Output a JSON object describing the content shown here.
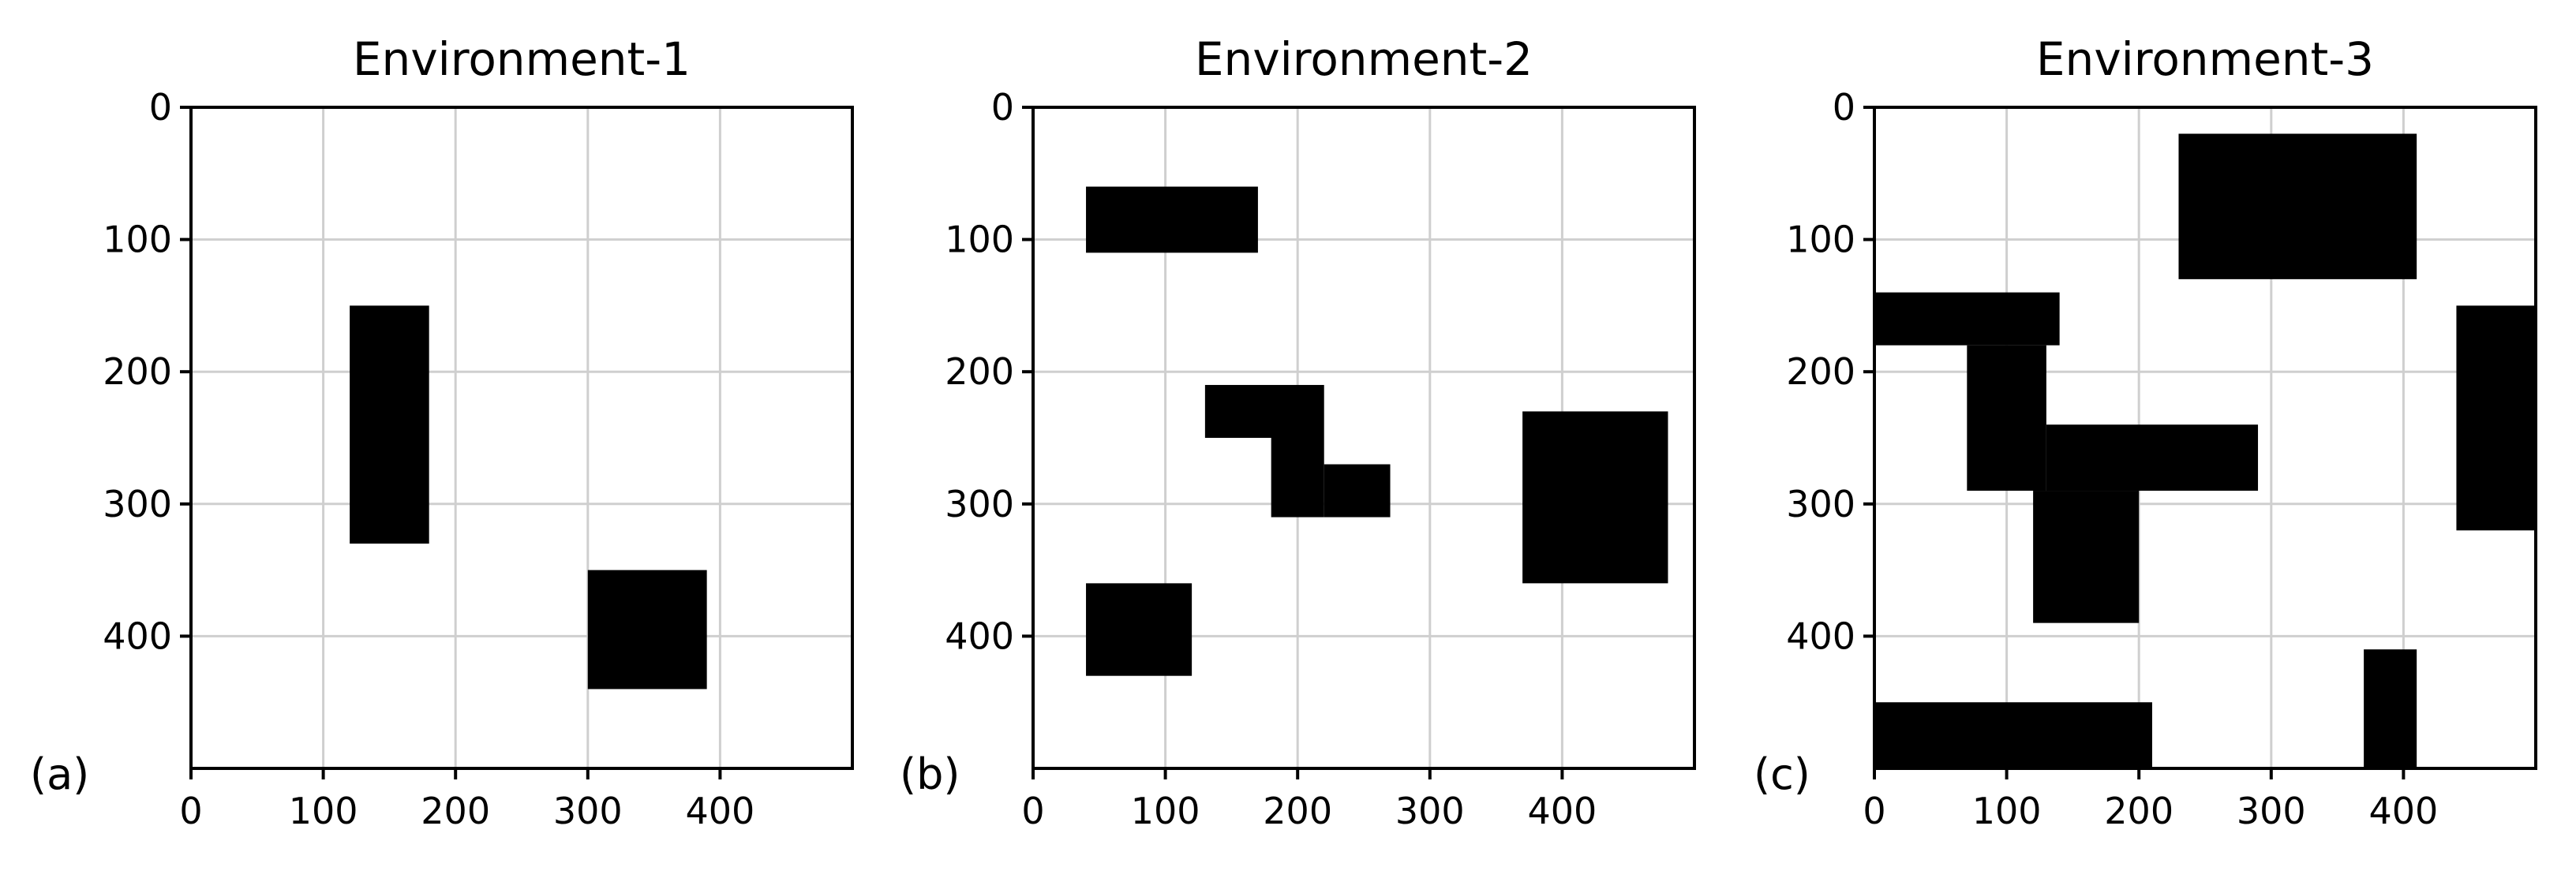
{
  "chart_data": [
    {
      "type": "heatmap",
      "title": "Environment-1",
      "panel_label": "(a)",
      "xlim": [
        0,
        500
      ],
      "ylim": [
        500,
        0
      ],
      "y_inverted": true,
      "grid": true,
      "xticks": [
        0,
        100,
        200,
        300,
        400
      ],
      "yticks": [
        0,
        100,
        200,
        300,
        400
      ],
      "obstacle_color": "#000000",
      "obstacles": [
        {
          "x0": 120,
          "x1": 180,
          "y0": 150,
          "y1": 330
        },
        {
          "x0": 300,
          "x1": 390,
          "y0": 350,
          "y1": 440
        }
      ]
    },
    {
      "type": "heatmap",
      "title": "Environment-2",
      "panel_label": "(b)",
      "xlim": [
        0,
        500
      ],
      "ylim": [
        500,
        0
      ],
      "y_inverted": true,
      "grid": true,
      "xticks": [
        0,
        100,
        200,
        300,
        400
      ],
      "yticks": [
        0,
        100,
        200,
        300,
        400
      ],
      "obstacle_color": "#000000",
      "obstacles": [
        {
          "x0": 40,
          "x1": 170,
          "y0": 60,
          "y1": 110
        },
        {
          "x0": 130,
          "x1": 220,
          "y0": 210,
          "y1": 250
        },
        {
          "x0": 180,
          "x1": 220,
          "y0": 250,
          "y1": 310
        },
        {
          "x0": 220,
          "x1": 270,
          "y0": 270,
          "y1": 310
        },
        {
          "x0": 370,
          "x1": 480,
          "y0": 230,
          "y1": 360
        },
        {
          "x0": 40,
          "x1": 120,
          "y0": 360,
          "y1": 430
        }
      ]
    },
    {
      "type": "heatmap",
      "title": "Environment-3",
      "panel_label": "(c)",
      "xlim": [
        0,
        500
      ],
      "ylim": [
        500,
        0
      ],
      "y_inverted": true,
      "grid": true,
      "xticks": [
        0,
        100,
        200,
        300,
        400
      ],
      "yticks": [
        0,
        100,
        200,
        300,
        400
      ],
      "obstacle_color": "#000000",
      "obstacles": [
        {
          "x0": 230,
          "x1": 410,
          "y0": 20,
          "y1": 130
        },
        {
          "x0": 0,
          "x1": 140,
          "y0": 140,
          "y1": 180
        },
        {
          "x0": 70,
          "x1": 130,
          "y0": 180,
          "y1": 290
        },
        {
          "x0": 130,
          "x1": 290,
          "y0": 240,
          "y1": 290
        },
        {
          "x0": 120,
          "x1": 200,
          "y0": 290,
          "y1": 390
        },
        {
          "x0": 440,
          "x1": 500,
          "y0": 150,
          "y1": 320
        },
        {
          "x0": 370,
          "x1": 410,
          "y0": 410,
          "y1": 500
        },
        {
          "x0": 0,
          "x1": 210,
          "y0": 450,
          "y1": 500
        }
      ]
    }
  ]
}
